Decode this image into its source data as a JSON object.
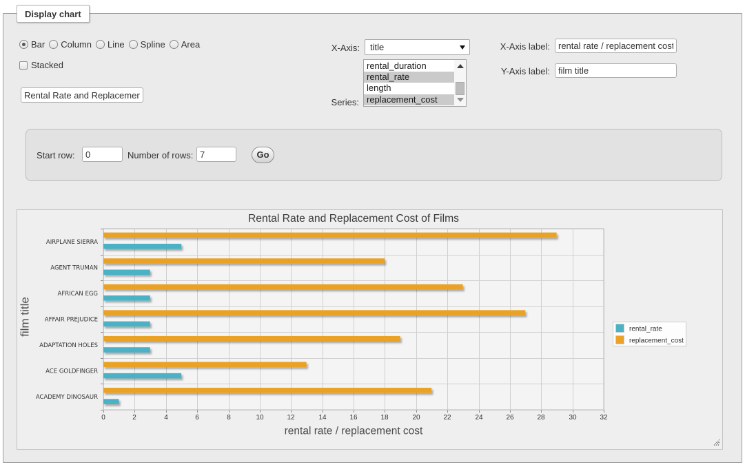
{
  "panel": {
    "legend": "Display chart"
  },
  "chart_type": {
    "options": [
      {
        "label": "Bar",
        "selected": true
      },
      {
        "label": "Column",
        "selected": false
      },
      {
        "label": "Line",
        "selected": false
      },
      {
        "label": "Spline",
        "selected": false
      },
      {
        "label": "Area",
        "selected": false
      }
    ]
  },
  "stacked": {
    "label": "Stacked",
    "checked": false
  },
  "title_field": {
    "value": "Rental Rate and Replacement Cost of Films"
  },
  "x_axis_select": {
    "label": "X-Axis:",
    "selected": "title"
  },
  "series_list": {
    "label": "Series:",
    "options": [
      {
        "label": "rental_duration",
        "selected": false
      },
      {
        "label": "rental_rate",
        "selected": true
      },
      {
        "label": "length",
        "selected": false
      },
      {
        "label": "replacement_cost",
        "selected": true
      }
    ]
  },
  "x_axis_label_field": {
    "label": "X-Axis label:",
    "value": "rental rate / replacement cost"
  },
  "y_axis_label_field": {
    "label": "Y-Axis label:",
    "value": "film title"
  },
  "rows_panel": {
    "start_row_label": "Start row:",
    "start_row_value": "0",
    "num_rows_label": "Number of rows:",
    "num_rows_value": "7",
    "go_label": "Go"
  },
  "chart_data": {
    "type": "bar",
    "orientation": "horizontal",
    "title": "Rental Rate and Replacement Cost of Films",
    "xlabel": "rental rate / replacement cost",
    "ylabel": "film title",
    "categories": [
      "AIRPLANE SIERRA",
      "AGENT TRUMAN",
      "AFRICAN EGG",
      "AFFAIR PREJUDICE",
      "ADAPTATION HOLES",
      "ACE GOLDFINGER",
      "ACADEMY DINOSAUR"
    ],
    "series": [
      {
        "name": "rental_rate",
        "color": "#4bb2c5",
        "values": [
          4.99,
          2.99,
          2.99,
          2.99,
          2.99,
          4.99,
          0.99
        ]
      },
      {
        "name": "replacement_cost",
        "color": "#EAA228",
        "values": [
          28.99,
          17.99,
          22.99,
          26.99,
          18.99,
          12.99,
          20.99
        ]
      }
    ],
    "xlim": [
      0,
      32
    ],
    "xtick_step": 2,
    "grid": true,
    "legend_position": "right",
    "colors": {
      "plot_bg": "#f4f4f4",
      "grid_line": "#d0d0d0",
      "grid_border": "#bdbdbd",
      "tick": "#888888",
      "title_color": "#3b3b3b",
      "axis_label_color": "#4d4d4d",
      "tick_label_color": "#333333",
      "legend_bg": "#fdfdfd",
      "legend_border": "#cccccc"
    }
  }
}
